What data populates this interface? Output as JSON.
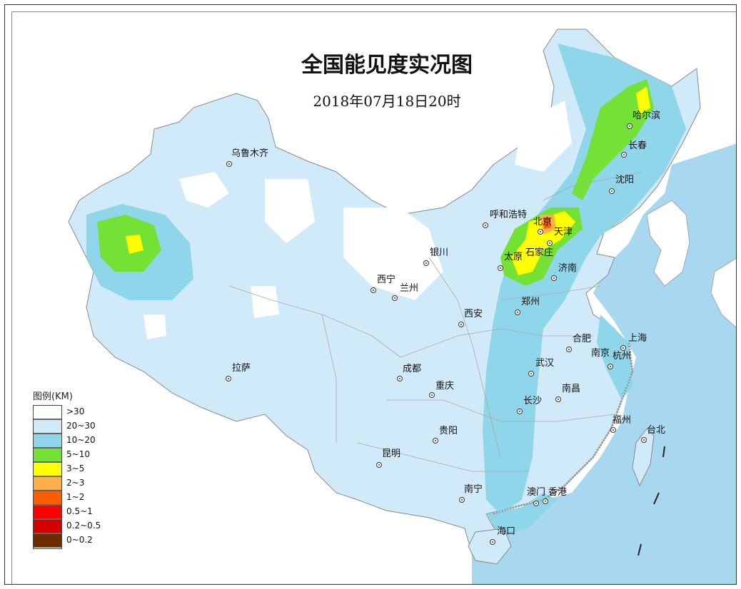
{
  "map": {
    "title": "全国能见度实况图",
    "subtitle": "2018年07月18日20时"
  },
  "colors": {
    "over_30": "#ffffff",
    "r20_30": "#d0eaf9",
    "r10_20": "#8fd6ea",
    "r5_10": "#73e235",
    "r3_5": "#ffff00",
    "r2_3": "#ffae4c",
    "r1_2": "#ff5e00",
    "r05_1": "#ff0000",
    "r02_05": "#d50000",
    "r0_02": "#6e2b00",
    "sea": "#a8d8ef",
    "land_outside": "#ffffff"
  },
  "legend": {
    "title": "图例(KM)",
    "items": [
      {
        "label": ">30",
        "color": "#ffffff"
      },
      {
        "label": "20~30",
        "color": "#d0eaf9"
      },
      {
        "label": "10~20",
        "color": "#8fd6ea"
      },
      {
        "label": "5~10",
        "color": "#73e235"
      },
      {
        "label": "3~5",
        "color": "#ffff00"
      },
      {
        "label": "2~3",
        "color": "#ffae4c"
      },
      {
        "label": "1~2",
        "color": "#ff5e00"
      },
      {
        "label": "0.5~1",
        "color": "#ff0000"
      },
      {
        "label": "0.2~0.5",
        "color": "#d50000"
      },
      {
        "label": "0~0.2",
        "color": "#6e2b00"
      }
    ]
  },
  "cities": {
    "urumqi": "乌鲁木齐",
    "harbin": "哈尔滨",
    "changchun": "长春",
    "shenyang": "沈阳",
    "hohhot": "呼和浩特",
    "beijing": "北京",
    "tianjin": "天津",
    "yinchuan": "银川",
    "shijiazhuang": "石家庄",
    "taiyuan": "太原",
    "jinan": "济南",
    "xining": "西宁",
    "lanzhou": "兰州",
    "zhengzhou": "郑州",
    "xian": "西安",
    "hefei": "合肥",
    "shanghai": "上海",
    "nanjing": "南京",
    "hangzhou": "杭州",
    "lhasa": "拉萨",
    "chengdu": "成都",
    "wuhan": "武汉",
    "chongqing": "重庆",
    "nanchang": "南昌",
    "changsha": "长沙",
    "fuzhou": "福州",
    "guiyang": "贵阳",
    "taipei": "台北",
    "kunming": "昆明",
    "nanning": "南宁",
    "macau": "澳门",
    "hongkong": "香港",
    "haikou": "海口"
  }
}
